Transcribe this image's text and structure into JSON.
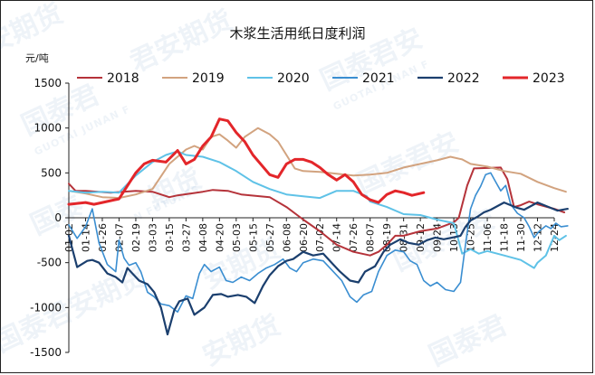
{
  "chart_data": {
    "type": "line",
    "title": "木浆生活用纸日度利润",
    "unit_label": "元/吨",
    "ylim": [
      -1500,
      1500
    ],
    "yticks": [
      1500,
      1000,
      500,
      0,
      -500,
      -1000,
      -1500
    ],
    "xticks": [
      "01-02",
      "01-14",
      "01-26",
      "02-07",
      "02-19",
      "03-03",
      "03-15",
      "03-27",
      "04-08",
      "04-20",
      "05-03",
      "05-15",
      "05-27",
      "06-08",
      "06-20",
      "07-02",
      "07-14",
      "07-26",
      "08-07",
      "08-19",
      "08-31",
      "09-12",
      "09-24",
      "10-13",
      "10-25",
      "11-06",
      "11-18",
      "11-30",
      "12-12",
      "12-24"
    ],
    "legend_position": "top",
    "series": [
      {
        "name": "2018",
        "color": "#b5333a",
        "width": 2,
        "points": [
          [
            0,
            380
          ],
          [
            0.4,
            300
          ],
          [
            1,
            300
          ],
          [
            2.5,
            280
          ],
          [
            4,
            300
          ],
          [
            5,
            290
          ],
          [
            6,
            230
          ],
          [
            6.5,
            250
          ],
          [
            8,
            290
          ],
          [
            8.6,
            310
          ],
          [
            9.5,
            300
          ],
          [
            10.3,
            260
          ],
          [
            12,
            230
          ],
          [
            13,
            120
          ],
          [
            14,
            -20
          ],
          [
            15,
            -150
          ],
          [
            16,
            -300
          ],
          [
            17,
            -380
          ],
          [
            18,
            -420
          ],
          [
            18.5,
            -380
          ],
          [
            19,
            -300
          ],
          [
            19.5,
            -200
          ],
          [
            20,
            -200
          ],
          [
            21,
            -150
          ],
          [
            22,
            -120
          ],
          [
            23,
            -50
          ],
          [
            23.3,
            0
          ],
          [
            23.8,
            360
          ],
          [
            24.2,
            550
          ],
          [
            25.8,
            560
          ],
          [
            26.2,
            430
          ],
          [
            26.6,
            120
          ],
          [
            27,
            140
          ],
          [
            27.5,
            180
          ],
          [
            28,
            150
          ],
          [
            29,
            100
          ],
          [
            29.6,
            60
          ]
        ]
      },
      {
        "name": "2019",
        "color": "#d2a37f",
        "width": 2,
        "points": [
          [
            0,
            300
          ],
          [
            1,
            270
          ],
          [
            2,
            230
          ],
          [
            3,
            220
          ],
          [
            4,
            260
          ],
          [
            5,
            320
          ],
          [
            6,
            600
          ],
          [
            7,
            760
          ],
          [
            7.5,
            800
          ],
          [
            8,
            760
          ],
          [
            8.5,
            900
          ],
          [
            9,
            930
          ],
          [
            9.5,
            860
          ],
          [
            10,
            780
          ],
          [
            10.5,
            900
          ],
          [
            11.3,
            1000
          ],
          [
            12,
            930
          ],
          [
            12.5,
            850
          ],
          [
            13,
            700
          ],
          [
            13.5,
            550
          ],
          [
            14,
            520
          ],
          [
            15,
            510
          ],
          [
            16,
            490
          ],
          [
            17,
            470
          ],
          [
            18,
            480
          ],
          [
            19,
            500
          ],
          [
            20,
            560
          ],
          [
            21,
            600
          ],
          [
            22,
            640
          ],
          [
            22.8,
            680
          ],
          [
            23.5,
            650
          ],
          [
            24,
            600
          ],
          [
            25,
            570
          ],
          [
            26,
            520
          ],
          [
            27,
            490
          ],
          [
            28,
            400
          ],
          [
            29,
            330
          ],
          [
            29.7,
            290
          ]
        ]
      },
      {
        "name": "2020",
        "color": "#5fc2e7",
        "width": 2,
        "points": [
          [
            0,
            300
          ],
          [
            1,
            280
          ],
          [
            2,
            290
          ],
          [
            3,
            280
          ],
          [
            4,
            470
          ],
          [
            5,
            620
          ],
          [
            5.8,
            700
          ],
          [
            6.5,
            740
          ],
          [
            7,
            700
          ],
          [
            8,
            680
          ],
          [
            9,
            620
          ],
          [
            10,
            520
          ],
          [
            11,
            400
          ],
          [
            12,
            320
          ],
          [
            13,
            260
          ],
          [
            14,
            240
          ],
          [
            15,
            220
          ],
          [
            16,
            300
          ],
          [
            17,
            300
          ],
          [
            17.8,
            240
          ],
          [
            18,
            180
          ],
          [
            19,
            120
          ],
          [
            20,
            40
          ],
          [
            21,
            30
          ],
          [
            22,
            -20
          ],
          [
            23,
            -60
          ],
          [
            23.5,
            -400
          ],
          [
            24,
            -350
          ],
          [
            24.5,
            -400
          ],
          [
            25,
            -370
          ],
          [
            26,
            -420
          ],
          [
            27,
            -470
          ],
          [
            27.8,
            -560
          ],
          [
            28,
            -500
          ],
          [
            28.5,
            -420
          ],
          [
            29,
            -200
          ],
          [
            29.3,
            -250
          ],
          [
            29.7,
            -200
          ]
        ]
      },
      {
        "name": "2021",
        "color": "#3a8ed1",
        "width": 1.6,
        "points": [
          [
            0,
            -80
          ],
          [
            0.5,
            -230
          ],
          [
            1,
            -100
          ],
          [
            1.4,
            100
          ],
          [
            1.8,
            -280
          ],
          [
            2.3,
            -520
          ],
          [
            2.8,
            -600
          ],
          [
            3,
            -250
          ],
          [
            3.3,
            -450
          ],
          [
            3.6,
            -530
          ],
          [
            4,
            -500
          ],
          [
            4.3,
            -600
          ],
          [
            4.7,
            -830
          ],
          [
            5.1,
            -880
          ],
          [
            5.5,
            -960
          ],
          [
            6,
            -980
          ],
          [
            6.5,
            -1050
          ],
          [
            7,
            -870
          ],
          [
            7.4,
            -900
          ],
          [
            7.8,
            -620
          ],
          [
            8.1,
            -520
          ],
          [
            8.5,
            -600
          ],
          [
            9,
            -550
          ],
          [
            9.4,
            -700
          ],
          [
            9.8,
            -720
          ],
          [
            10.3,
            -660
          ],
          [
            10.8,
            -700
          ],
          [
            11.3,
            -620
          ],
          [
            11.8,
            -560
          ],
          [
            12.3,
            -520
          ],
          [
            12.8,
            -460
          ],
          [
            13.2,
            -560
          ],
          [
            13.6,
            -600
          ],
          [
            14,
            -500
          ],
          [
            14.6,
            -460
          ],
          [
            15.2,
            -480
          ],
          [
            15.8,
            -600
          ],
          [
            16.3,
            -700
          ],
          [
            16.8,
            -880
          ],
          [
            17.2,
            -940
          ],
          [
            17.6,
            -860
          ],
          [
            18.1,
            -820
          ],
          [
            18.5,
            -600
          ],
          [
            19,
            -420
          ],
          [
            19.5,
            -360
          ],
          [
            20,
            -380
          ],
          [
            20.4,
            -480
          ],
          [
            20.8,
            -520
          ],
          [
            21.2,
            -700
          ],
          [
            21.6,
            -760
          ],
          [
            22,
            -720
          ],
          [
            22.5,
            -800
          ],
          [
            23,
            -820
          ],
          [
            23.4,
            -720
          ],
          [
            23.7,
            -300
          ],
          [
            24,
            100
          ],
          [
            24.3,
            250
          ],
          [
            24.6,
            350
          ],
          [
            24.9,
            480
          ],
          [
            25.2,
            500
          ],
          [
            25.5,
            400
          ],
          [
            25.8,
            300
          ],
          [
            26.1,
            360
          ],
          [
            26.4,
            150
          ],
          [
            26.8,
            50
          ],
          [
            27.2,
            0
          ],
          [
            27.5,
            -100
          ],
          [
            27.8,
            -220
          ],
          [
            28.1,
            -150
          ],
          [
            28.5,
            -90
          ],
          [
            28.8,
            -120
          ],
          [
            29.1,
            -60
          ],
          [
            29.4,
            -100
          ],
          [
            29.8,
            -90
          ]
        ]
      },
      {
        "name": "2022",
        "color": "#1b3f6e",
        "width": 2.2,
        "points": [
          [
            0,
            -200
          ],
          [
            0.5,
            -550
          ],
          [
            1.1,
            -480
          ],
          [
            1.4,
            -470
          ],
          [
            1.8,
            -500
          ],
          [
            2.3,
            -620
          ],
          [
            2.8,
            -660
          ],
          [
            3.2,
            -720
          ],
          [
            3.5,
            -560
          ],
          [
            3.8,
            -620
          ],
          [
            4.2,
            -700
          ],
          [
            4.7,
            -740
          ],
          [
            5.1,
            -830
          ],
          [
            5.5,
            -1000
          ],
          [
            5.9,
            -1300
          ],
          [
            6.3,
            -1030
          ],
          [
            6.6,
            -930
          ],
          [
            7.1,
            -900
          ],
          [
            7.5,
            -1080
          ],
          [
            8.1,
            -1000
          ],
          [
            8.6,
            -860
          ],
          [
            9.1,
            -850
          ],
          [
            9.5,
            -880
          ],
          [
            10.1,
            -860
          ],
          [
            10.6,
            -880
          ],
          [
            11.1,
            -950
          ],
          [
            11.6,
            -760
          ],
          [
            12,
            -640
          ],
          [
            12.5,
            -540
          ],
          [
            13,
            -480
          ],
          [
            13.4,
            -460
          ],
          [
            14,
            -380
          ],
          [
            14.6,
            -420
          ],
          [
            15.2,
            -400
          ],
          [
            15.8,
            -520
          ],
          [
            16.2,
            -600
          ],
          [
            16.8,
            -700
          ],
          [
            17.3,
            -720
          ],
          [
            17.7,
            -600
          ],
          [
            18.3,
            -540
          ],
          [
            18.8,
            -380
          ],
          [
            19.2,
            -300
          ],
          [
            19.8,
            -240
          ],
          [
            20.3,
            -280
          ],
          [
            20.9,
            -300
          ],
          [
            21.4,
            -250
          ],
          [
            21.9,
            -220
          ],
          [
            22.4,
            -240
          ],
          [
            22.9,
            -220
          ],
          [
            23.4,
            -200
          ],
          [
            23.7,
            -100
          ],
          [
            24,
            -30
          ],
          [
            24.4,
            10
          ],
          [
            24.8,
            60
          ],
          [
            25.2,
            90
          ],
          [
            25.6,
            130
          ],
          [
            26,
            170
          ],
          [
            26.4,
            140
          ],
          [
            26.8,
            110
          ],
          [
            27.2,
            90
          ],
          [
            27.6,
            130
          ],
          [
            28,
            170
          ],
          [
            28.4,
            140
          ],
          [
            28.8,
            110
          ],
          [
            29.2,
            80
          ],
          [
            29.8,
            100
          ]
        ]
      },
      {
        "name": "2023",
        "color": "#e3262a",
        "width": 3,
        "points": [
          [
            0,
            150
          ],
          [
            0.5,
            160
          ],
          [
            1,
            170
          ],
          [
            1.5,
            150
          ],
          [
            2,
            170
          ],
          [
            3,
            210
          ],
          [
            4,
            500
          ],
          [
            4.5,
            600
          ],
          [
            5,
            640
          ],
          [
            5.8,
            620
          ],
          [
            6.5,
            750
          ],
          [
            7,
            600
          ],
          [
            7.5,
            650
          ],
          [
            8,
            800
          ],
          [
            8.5,
            900
          ],
          [
            9,
            1100
          ],
          [
            9.5,
            1080
          ],
          [
            10,
            950
          ],
          [
            10.5,
            850
          ],
          [
            11,
            700
          ],
          [
            12,
            480
          ],
          [
            12.5,
            450
          ],
          [
            13,
            600
          ],
          [
            13.5,
            650
          ],
          [
            14,
            650
          ],
          [
            14.5,
            620
          ],
          [
            15,
            560
          ],
          [
            15.5,
            480
          ],
          [
            16,
            420
          ],
          [
            16.5,
            480
          ],
          [
            17,
            400
          ],
          [
            17.5,
            260
          ],
          [
            18,
            200
          ],
          [
            18.5,
            170
          ],
          [
            19,
            260
          ],
          [
            19.5,
            300
          ],
          [
            20,
            280
          ],
          [
            20.5,
            250
          ],
          [
            21.2,
            280
          ]
        ]
      }
    ]
  }
}
